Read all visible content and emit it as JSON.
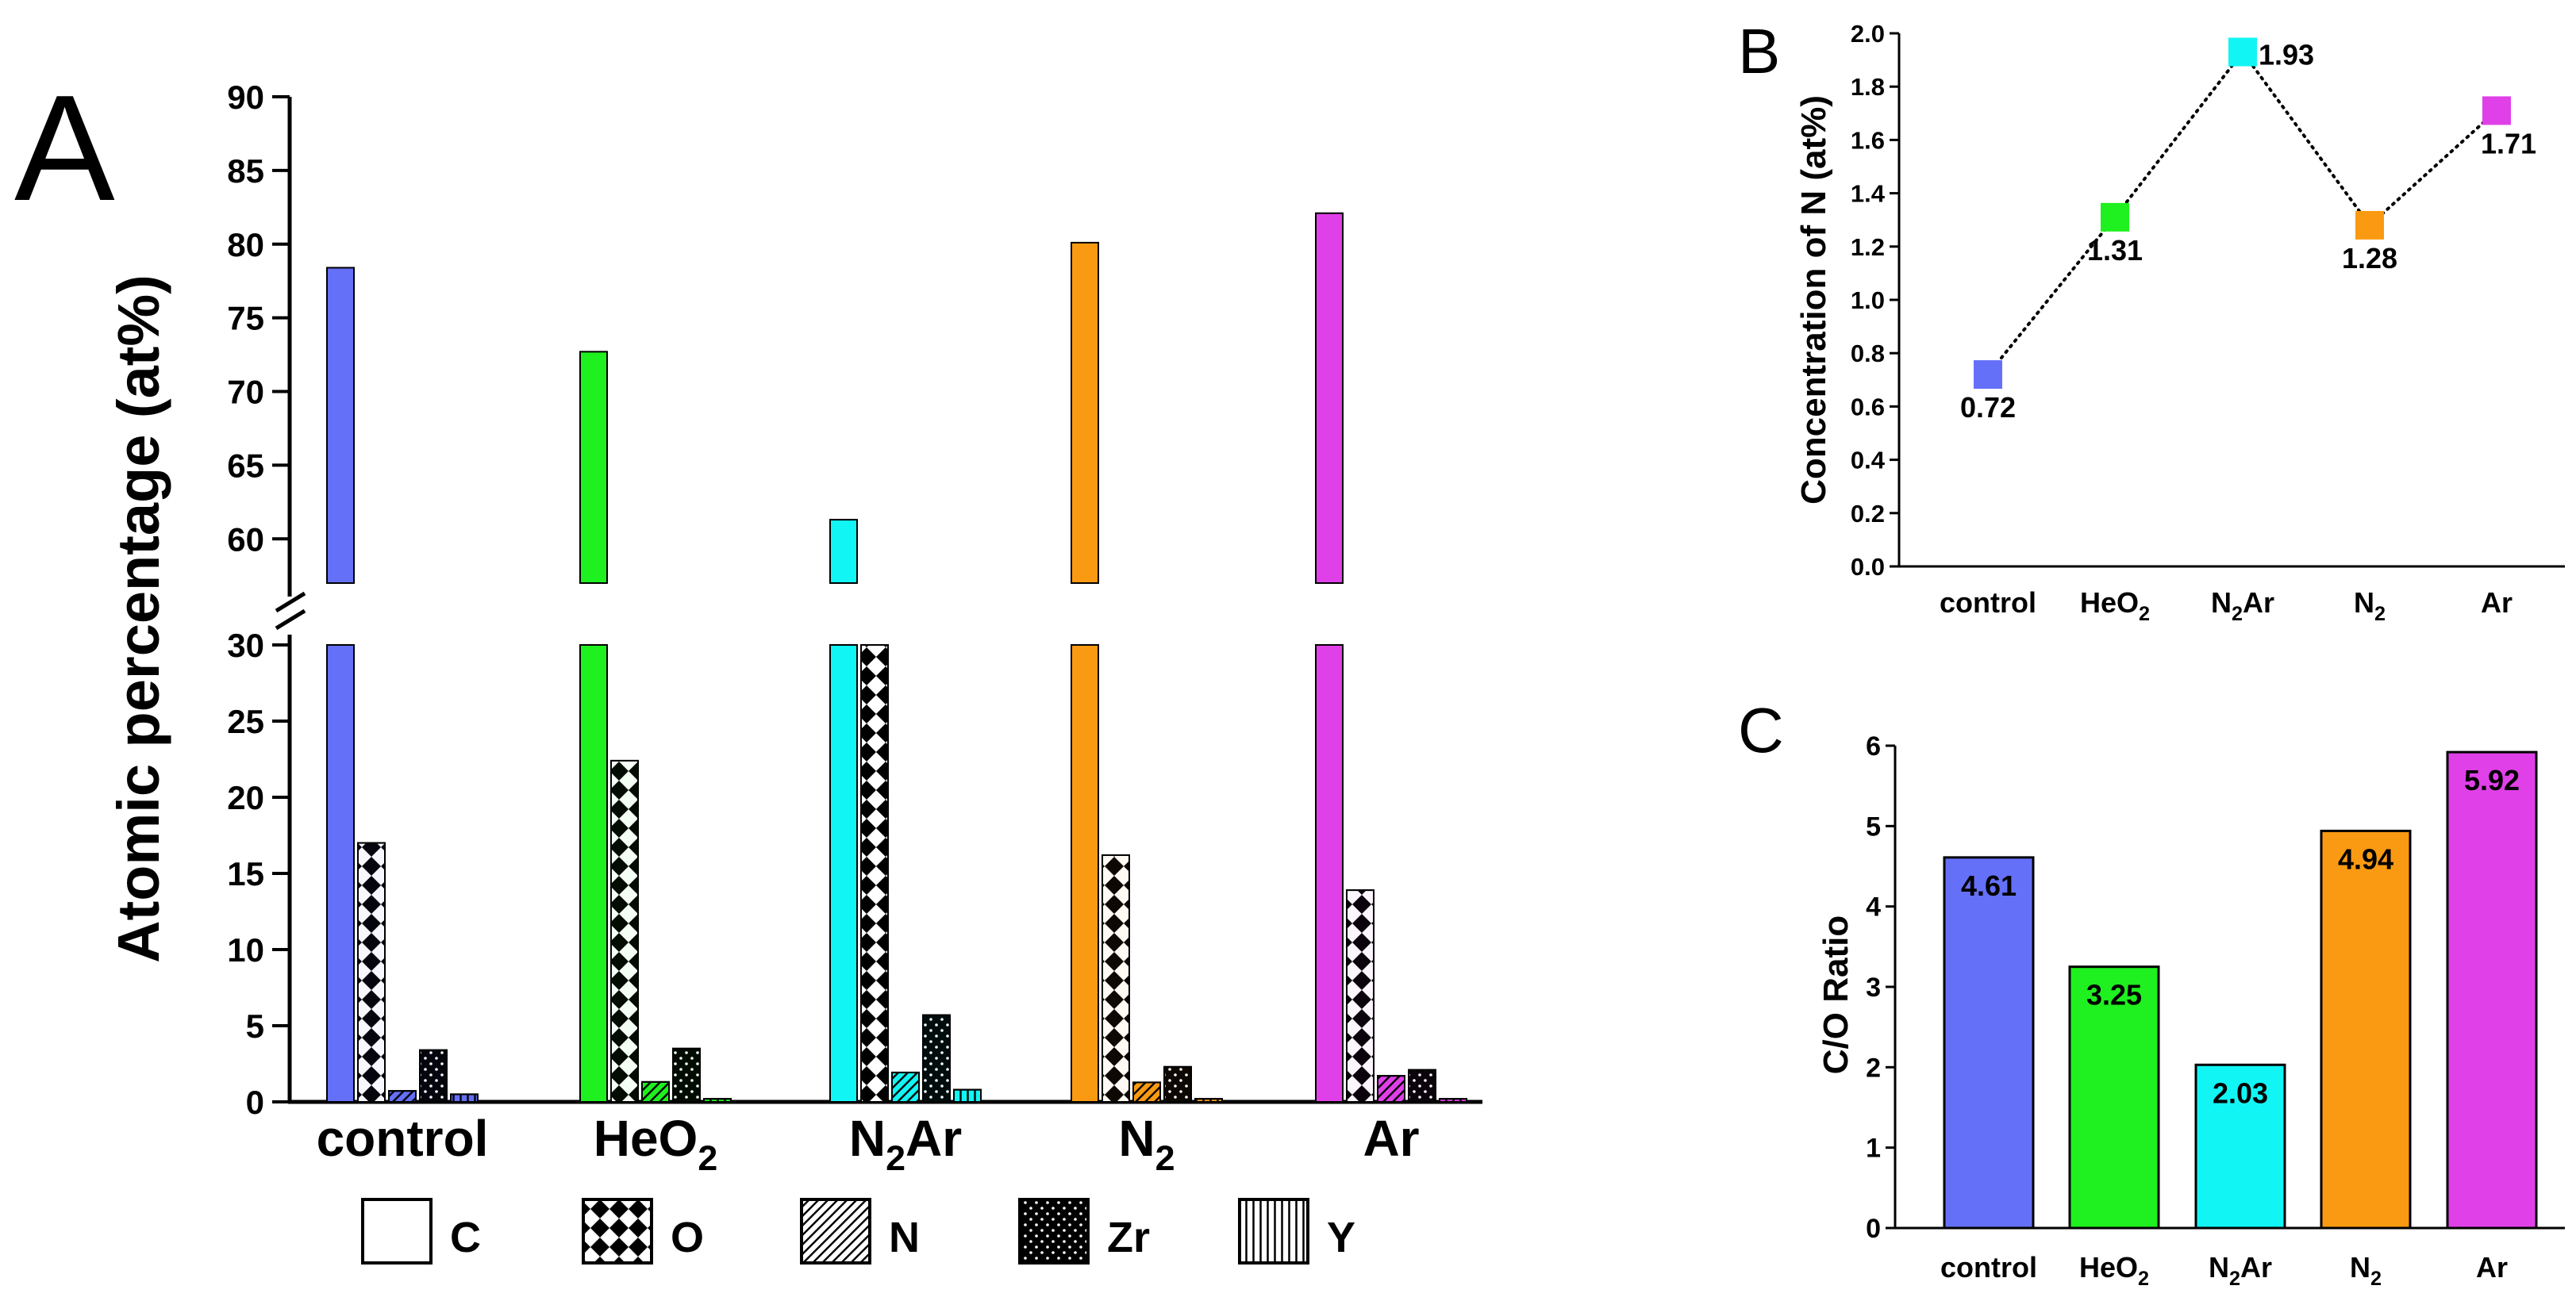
{
  "colors": {
    "control": "#6470f8",
    "HeO2": "#1ff01f",
    "N2Ar": "#12f5f5",
    "N2": "#fa9a12",
    "Ar": "#e040e8",
    "axis": "#000000"
  },
  "chart_data": [
    {
      "id": "A",
      "panel_label": "A",
      "type": "bar",
      "title": "",
      "xlabel": "",
      "ylabel": "Atomic percentage (at%)",
      "axis_break": {
        "lower": [
          0,
          30
        ],
        "upper": [
          57,
          90
        ]
      },
      "yticks_lower": [
        "0",
        "5",
        "10",
        "15",
        "20",
        "25",
        "30"
      ],
      "yticks_upper": [
        "60",
        "65",
        "70",
        "75",
        "80",
        "85",
        "90"
      ],
      "categories": [
        {
          "pre": "control",
          "sub": "",
          "post": ""
        },
        {
          "pre": "HeO",
          "sub": "2",
          "post": ""
        },
        {
          "pre": "N",
          "sub": "2",
          "post": "Ar"
        },
        {
          "pre": "N",
          "sub": "2",
          "post": ""
        },
        {
          "pre": "Ar",
          "sub": "",
          "post": ""
        }
      ],
      "series": [
        {
          "name": "C",
          "pattern": "none",
          "values": [
            78.4,
            72.7,
            61.3,
            80.1,
            82.1
          ]
        },
        {
          "name": "O",
          "pattern": "diamond",
          "values": [
            17.0,
            22.4,
            30.2,
            16.2,
            13.9
          ]
        },
        {
          "name": "N",
          "pattern": "diagonal",
          "values": [
            0.72,
            1.31,
            1.93,
            1.28,
            1.71
          ]
        },
        {
          "name": "Zr",
          "pattern": "dots",
          "values": [
            3.4,
            3.5,
            5.7,
            2.3,
            2.1
          ]
        },
        {
          "name": "Y",
          "pattern": "vertical",
          "values": [
            0.5,
            0.2,
            0.8,
            0.2,
            0.2
          ]
        }
      ],
      "legend": {
        "placement": "bottom",
        "items": [
          "C",
          "O",
          "N",
          "Zr",
          "Y"
        ]
      }
    },
    {
      "id": "B",
      "panel_label": "B",
      "type": "line",
      "title": "",
      "xlabel": "",
      "ylabel": "Concentration of N (at%)",
      "ylim": [
        0,
        2.0
      ],
      "yticks": [
        "0.0",
        "0.2",
        "0.4",
        "0.6",
        "0.8",
        "1.0",
        "1.2",
        "1.4",
        "1.6",
        "1.8",
        "2.0"
      ],
      "categories": [
        {
          "pre": "control",
          "sub": "",
          "post": ""
        },
        {
          "pre": "HeO",
          "sub": "2",
          "post": ""
        },
        {
          "pre": "N",
          "sub": "2",
          "post": "Ar"
        },
        {
          "pre": "N",
          "sub": "2",
          "post": ""
        },
        {
          "pre": "Ar",
          "sub": "",
          "post": ""
        }
      ],
      "values": [
        0.72,
        1.31,
        1.93,
        1.28,
        1.71
      ],
      "data_labels": [
        "0.72",
        "1.31",
        "1.93",
        "1.28",
        "1.71"
      ],
      "line_style": "dotted"
    },
    {
      "id": "C",
      "panel_label": "C",
      "type": "bar",
      "title": "",
      "xlabel": "",
      "ylabel": "C/O Ratio",
      "ylim": [
        0,
        6
      ],
      "yticks": [
        "0",
        "1",
        "2",
        "3",
        "4",
        "5",
        "6"
      ],
      "categories": [
        {
          "pre": "control",
          "sub": "",
          "post": ""
        },
        {
          "pre": "HeO",
          "sub": "2",
          "post": ""
        },
        {
          "pre": "N",
          "sub": "2",
          "post": "Ar"
        },
        {
          "pre": "N",
          "sub": "2",
          "post": ""
        },
        {
          "pre": "Ar",
          "sub": "",
          "post": ""
        }
      ],
      "values": [
        4.61,
        3.25,
        2.03,
        4.94,
        5.92
      ],
      "data_labels": [
        "4.61",
        "3.25",
        "2.03",
        "4.94",
        "5.92"
      ]
    }
  ]
}
